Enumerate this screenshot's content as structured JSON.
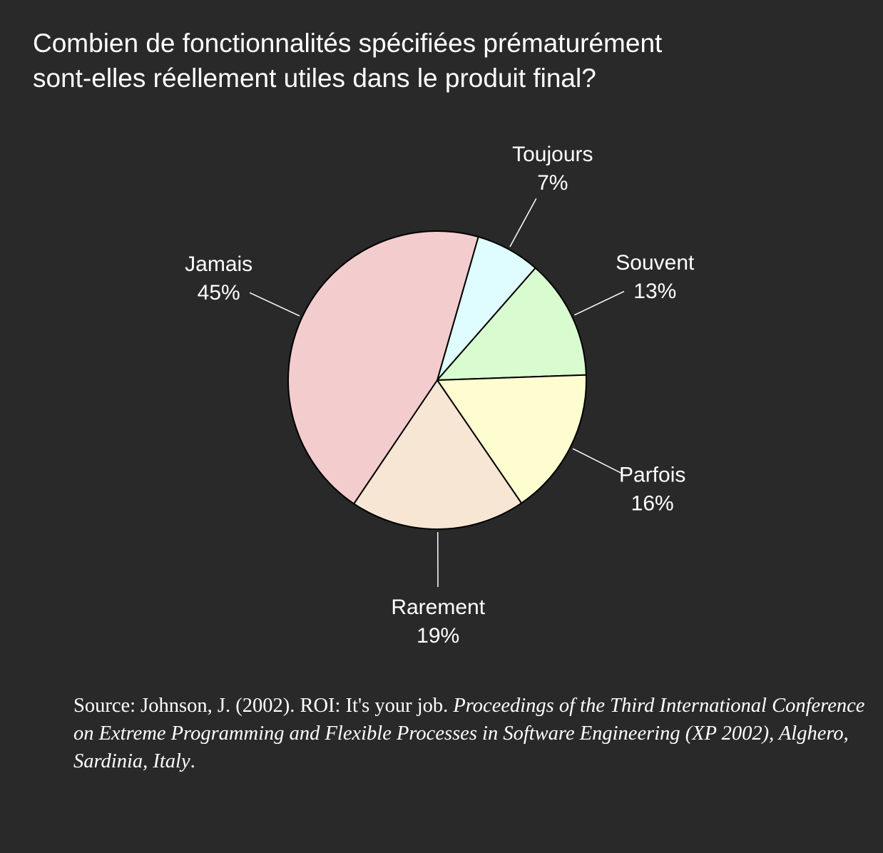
{
  "title_lines": [
    "Combien de fonctionnalités spécifiées prématurément",
    "sont-elles réellement utiles dans le produit final?"
  ],
  "chart_data": {
    "type": "pie",
    "title": "Combien de fonctionnalités spécifiées prématurément sont-elles réellement utiles dans le produit final?",
    "slices": [
      {
        "label": "Toujours",
        "value": 7,
        "value_label": "7%",
        "color": "#DFFCFF"
      },
      {
        "label": "Souvent",
        "value": 13,
        "value_label": "13%",
        "color": "#D9FBD0"
      },
      {
        "label": "Parfois",
        "value": 16,
        "value_label": "16%",
        "color": "#FEFDD0"
      },
      {
        "label": "Rarement",
        "value": 19,
        "value_label": "19%",
        "color": "#F7E6D3"
      },
      {
        "label": "Jamais",
        "value": 45,
        "value_label": "45%",
        "color": "#F3CDCE"
      }
    ],
    "start": "slightly right of 12 o'clock",
    "direction": "clockwise",
    "slice_border_color": "#000000",
    "leader_line_color": "#FFFFFF"
  },
  "source": {
    "prefix": "Source: Johnson, J. (2002). ROI: It's your job. ",
    "italic": "Proceedings of the Third International Conference on Extreme Programming and Flexible Processes in Software Engineering (XP 2002), Alghero, Sardinia, Italy",
    "suffix": "."
  },
  "colors": {
    "background": "#292929",
    "text": "#FFFFFF"
  }
}
